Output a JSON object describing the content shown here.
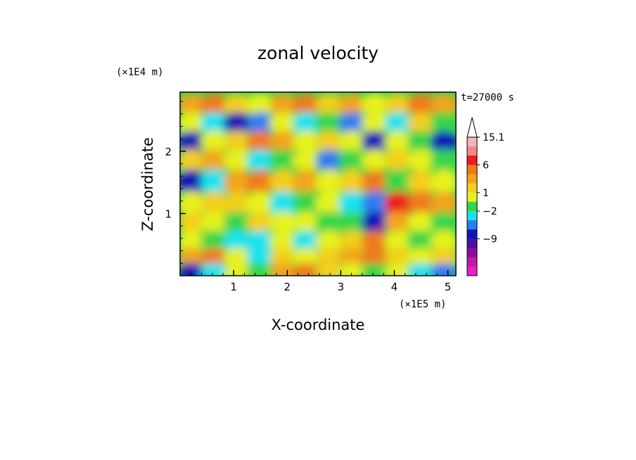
{
  "chart_data": {
    "type": "heatmap",
    "title": "zonal velocity",
    "xlabel": "X-coordinate",
    "ylabel": "Z-coordinate",
    "x_unit": "(×1E5 m)",
    "y_unit": "(×1E4 m)",
    "time_label": "t=27000 s",
    "xlim": [
      0,
      5.15
    ],
    "ylim": [
      0,
      2.95
    ],
    "x_ticks": [
      "1",
      "2",
      "3",
      "4",
      "5"
    ],
    "y_ticks": [
      "1",
      "2"
    ],
    "colorbar_labels": [
      "15.1",
      "6",
      "1",
      "−2",
      "−9"
    ],
    "colorbar_colors": [
      "#f4b6b6",
      "#ef8a8a",
      "#ee1c1c",
      "#f07a1c",
      "#f3a41a",
      "#f3cf1e",
      "#e6f21e",
      "#34d64a",
      "#18e3ef",
      "#2a7ef0",
      "#0a17b6",
      "#4a0fa6",
      "#8c0ca0",
      "#c21aa8",
      "#ec1fc4"
    ],
    "field_series": [
      {
        "z": 2.75,
        "values": [
          3,
          5,
          2,
          1,
          3,
          4,
          2,
          3,
          1,
          2,
          4,
          3
        ]
      },
      {
        "z": 2.45,
        "values": [
          1,
          -1,
          -6,
          -4,
          1,
          -2,
          0,
          -3,
          1,
          -1,
          2,
          0
        ]
      },
      {
        "z": 2.15,
        "values": [
          -6,
          1,
          2,
          4,
          3,
          1,
          2,
          1,
          -6,
          1,
          0,
          -6
        ]
      },
      {
        "z": 1.85,
        "values": [
          2,
          3,
          1,
          -1,
          0,
          1,
          -3,
          0,
          1,
          2,
          1,
          0
        ]
      },
      {
        "z": 1.5,
        "values": [
          -5,
          -2,
          3,
          4,
          2,
          3,
          1,
          2,
          4,
          0,
          2,
          1
        ]
      },
      {
        "z": 1.15,
        "values": [
          1,
          2,
          2,
          1,
          -2,
          0,
          1,
          -1,
          -4,
          6,
          5,
          3
        ]
      },
      {
        "z": 0.85,
        "values": [
          2,
          1,
          0,
          2,
          1,
          1,
          0,
          0,
          -6,
          3,
          1,
          0
        ]
      },
      {
        "z": 0.55,
        "values": [
          1,
          0,
          -2,
          -1,
          1,
          -2,
          1,
          2,
          4,
          1,
          0,
          1
        ]
      },
      {
        "z": 0.3,
        "values": [
          3,
          4,
          1,
          -1,
          2,
          1,
          2,
          3,
          5,
          2,
          1,
          2
        ]
      },
      {
        "z": 0.06,
        "values": [
          -5,
          -2,
          1,
          0,
          3,
          4,
          2,
          1,
          0,
          1,
          -2,
          -3
        ]
      }
    ]
  }
}
